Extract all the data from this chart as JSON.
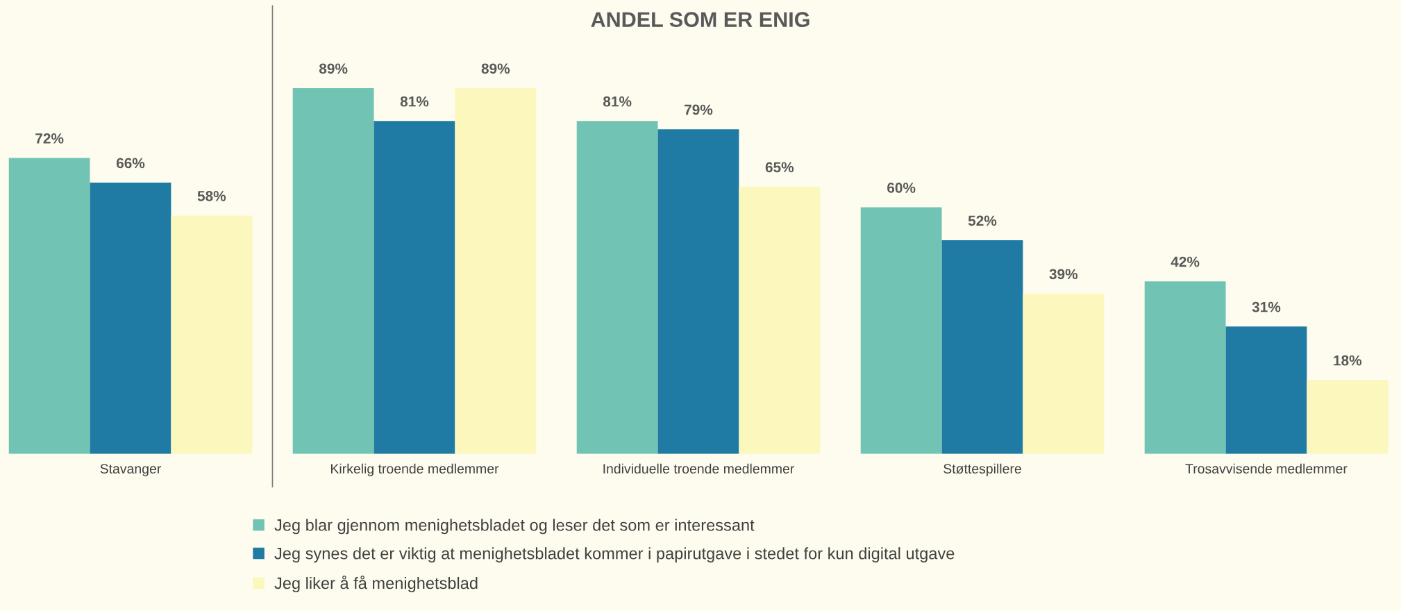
{
  "chart_data": {
    "type": "bar",
    "title": "ANDEL SOM ER ENIG",
    "categories": [
      "Stavanger",
      "Kirkelig troende medlemmer",
      "Individuelle troende medlemmer",
      "Støttespillere",
      "Trosavvisende medlemmer"
    ],
    "series": [
      {
        "name": "Jeg blar gjennom menighetsbladet og leser det som er interessant",
        "color": "#71c4b4",
        "values": [
          72,
          89,
          81,
          60,
          42
        ],
        "value_labels": [
          "72%",
          "89%",
          "81%",
          "60%",
          "42%"
        ]
      },
      {
        "name": "Jeg synes det er viktig at menighetsbladet kommer i papirutgave i stedet for kun digital utgave",
        "color": "#1f7ba3",
        "values": [
          66,
          81,
          79,
          52,
          31
        ],
        "value_labels": [
          "66%",
          "81%",
          "79%",
          "52%",
          "31%"
        ]
      },
      {
        "name": "Jeg liker å få menighetsblad",
        "color": "#fbf7bd",
        "values": [
          58,
          89,
          65,
          39,
          18
        ],
        "value_labels": [
          "58%",
          "89%",
          "65%",
          "39%",
          "18%"
        ]
      }
    ],
    "legend": "bottom",
    "grid": false
  }
}
